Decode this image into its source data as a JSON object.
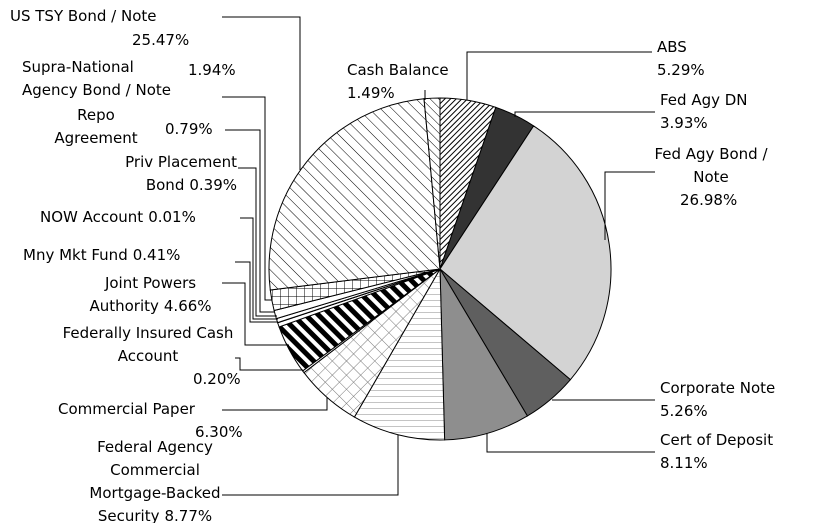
{
  "chart_data": {
    "type": "pie",
    "categories": [
      "ABS",
      "Fed Agy DN",
      "Fed Agy Bond / Note",
      "Corporate Note",
      "Cert of Deposit",
      "Federal Agency Commercial Mortgage-Backed Security",
      "Commercial Paper",
      "Federally Insured Cash Account",
      "Joint Powers Authority",
      "Mny Mkt Fund",
      "NOW Account",
      "Priv Placement Bond",
      "Repo Agreement",
      "Supra-National Agency Bond / Note",
      "US TSY Bond / Note",
      "Cash Balance"
    ],
    "values": [
      5.29,
      3.93,
      26.98,
      5.26,
      8.11,
      8.77,
      6.3,
      0.2,
      4.66,
      0.41,
      0.01,
      0.39,
      0.79,
      1.94,
      25.47,
      1.49
    ],
    "value_labels": [
      "5.29%",
      "3.93%",
      "26.98%",
      "5.26%",
      "8.11%",
      "8.77%",
      "6.30%",
      "0.20%",
      "4.66%",
      "0.41%",
      "0.01%",
      "0.39%",
      "0.79%",
      "1.94%",
      "25.47%",
      "1.49%"
    ]
  }
}
